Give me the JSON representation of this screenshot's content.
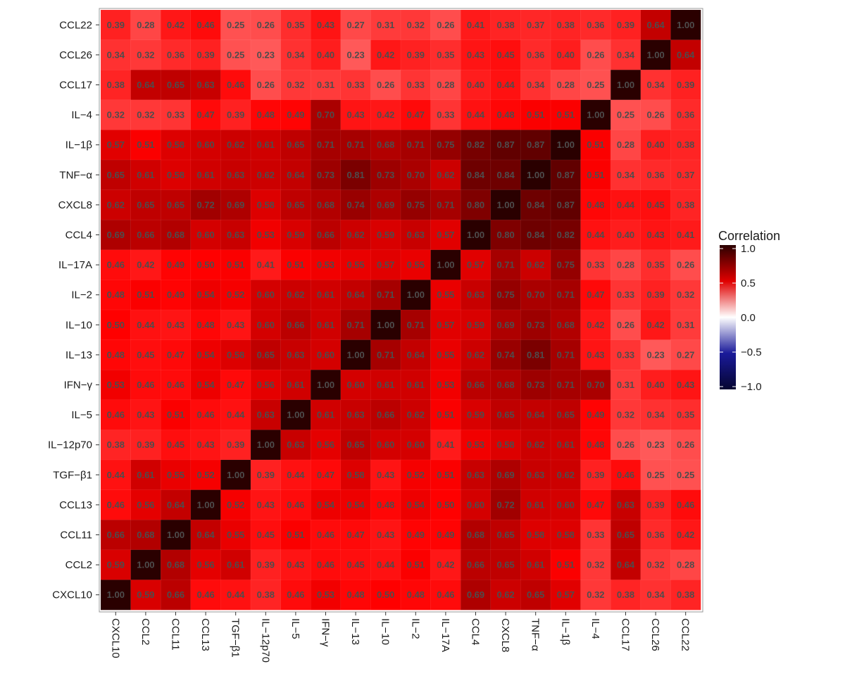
{
  "chart_data": {
    "type": "heatmap",
    "title": "",
    "xlabel": "",
    "ylabel": "",
    "x_categories": [
      "CXCL10",
      "CCL2",
      "CCL11",
      "CCL13",
      "TGF−β1",
      "IL−12p70",
      "IL−5",
      "IFN−γ",
      "IL−13",
      "IL−10",
      "IL−2",
      "IL−17A",
      "CCL4",
      "CXCL8",
      "TNF−α",
      "IL−1β",
      "IL−4",
      "CCL17",
      "CCL26",
      "CCL22"
    ],
    "y_categories": [
      "CCL22",
      "CCL26",
      "CCL17",
      "IL−4",
      "IL−1β",
      "TNF−α",
      "CXCL8",
      "CCL4",
      "IL−17A",
      "IL−2",
      "IL−10",
      "IL−13",
      "IFN−γ",
      "IL−5",
      "IL−12p70",
      "TGF−β1",
      "CCL13",
      "CCL11",
      "CCL2",
      "CXCL10"
    ],
    "values": [
      [
        0.39,
        0.28,
        0.42,
        0.46,
        0.25,
        0.26,
        0.35,
        0.43,
        0.27,
        0.31,
        0.32,
        0.26,
        0.41,
        0.38,
        0.37,
        0.38,
        0.36,
        0.39,
        0.64,
        1.0
      ],
      [
        0.34,
        0.32,
        0.36,
        0.39,
        0.25,
        0.23,
        0.34,
        0.4,
        0.23,
        0.42,
        0.39,
        0.35,
        0.43,
        0.45,
        0.36,
        0.4,
        0.26,
        0.34,
        1.0,
        0.64
      ],
      [
        0.38,
        0.64,
        0.65,
        0.63,
        0.46,
        0.26,
        0.32,
        0.31,
        0.33,
        0.26,
        0.33,
        0.28,
        0.4,
        0.44,
        0.34,
        0.28,
        0.25,
        1.0,
        0.34,
        0.39
      ],
      [
        0.32,
        0.32,
        0.33,
        0.47,
        0.39,
        0.48,
        0.49,
        0.7,
        0.43,
        0.42,
        0.47,
        0.33,
        0.44,
        0.48,
        0.51,
        0.51,
        1.0,
        0.25,
        0.26,
        0.36
      ],
      [
        0.57,
        0.51,
        0.58,
        0.6,
        0.62,
        0.61,
        0.65,
        0.71,
        0.71,
        0.68,
        0.71,
        0.75,
        0.82,
        0.87,
        0.87,
        1.0,
        0.51,
        0.28,
        0.4,
        0.38
      ],
      [
        0.65,
        0.61,
        0.58,
        0.61,
        0.63,
        0.62,
        0.64,
        0.73,
        0.81,
        0.73,
        0.7,
        0.62,
        0.84,
        0.84,
        1.0,
        0.87,
        0.51,
        0.34,
        0.36,
        0.37
      ],
      [
        0.62,
        0.65,
        0.65,
        0.72,
        0.69,
        0.58,
        0.65,
        0.68,
        0.74,
        0.69,
        0.75,
        0.71,
        0.8,
        1.0,
        0.84,
        0.87,
        0.48,
        0.44,
        0.45,
        0.38
      ],
      [
        0.69,
        0.66,
        0.68,
        0.6,
        0.63,
        0.53,
        0.59,
        0.66,
        0.62,
        0.59,
        0.63,
        0.57,
        1.0,
        0.8,
        0.84,
        0.82,
        0.44,
        0.4,
        0.43,
        0.41
      ],
      [
        0.46,
        0.42,
        0.49,
        0.5,
        0.51,
        0.41,
        0.51,
        0.53,
        0.55,
        0.57,
        0.55,
        1.0,
        0.57,
        0.71,
        0.62,
        0.75,
        0.33,
        0.28,
        0.35,
        0.26
      ],
      [
        0.48,
        0.51,
        0.49,
        0.54,
        0.52,
        0.6,
        0.62,
        0.61,
        0.64,
        0.71,
        1.0,
        0.55,
        0.63,
        0.75,
        0.7,
        0.71,
        0.47,
        0.33,
        0.39,
        0.32
      ],
      [
        0.5,
        0.44,
        0.43,
        0.48,
        0.43,
        0.6,
        0.66,
        0.61,
        0.71,
        1.0,
        0.71,
        0.57,
        0.59,
        0.69,
        0.73,
        0.68,
        0.42,
        0.26,
        0.42,
        0.31
      ],
      [
        0.48,
        0.45,
        0.47,
        0.54,
        0.58,
        0.65,
        0.63,
        0.6,
        1.0,
        0.71,
        0.64,
        0.55,
        0.62,
        0.74,
        0.81,
        0.71,
        0.43,
        0.33,
        0.23,
        0.27
      ],
      [
        0.53,
        0.46,
        0.46,
        0.54,
        0.47,
        0.56,
        0.61,
        1.0,
        0.6,
        0.61,
        0.61,
        0.53,
        0.66,
        0.68,
        0.73,
        0.71,
        0.7,
        0.31,
        0.4,
        0.43
      ],
      [
        0.46,
        0.43,
        0.51,
        0.46,
        0.44,
        0.63,
        1.0,
        0.61,
        0.63,
        0.66,
        0.62,
        0.51,
        0.59,
        0.65,
        0.64,
        0.65,
        0.49,
        0.32,
        0.34,
        0.35
      ],
      [
        0.38,
        0.39,
        0.45,
        0.43,
        0.39,
        1.0,
        0.63,
        0.56,
        0.65,
        0.6,
        0.6,
        0.41,
        0.53,
        0.58,
        0.62,
        0.61,
        0.48,
        0.26,
        0.23,
        0.26
      ],
      [
        0.44,
        0.61,
        0.55,
        0.52,
        1.0,
        0.39,
        0.44,
        0.47,
        0.58,
        0.43,
        0.52,
        0.51,
        0.63,
        0.69,
        0.63,
        0.62,
        0.39,
        0.46,
        0.25,
        0.25
      ],
      [
        0.46,
        0.56,
        0.64,
        1.0,
        0.52,
        0.43,
        0.46,
        0.54,
        0.54,
        0.48,
        0.54,
        0.5,
        0.6,
        0.72,
        0.61,
        0.6,
        0.47,
        0.63,
        0.39,
        0.46
      ],
      [
        0.66,
        0.68,
        1.0,
        0.64,
        0.55,
        0.45,
        0.51,
        0.46,
        0.47,
        0.43,
        0.49,
        0.49,
        0.68,
        0.65,
        0.58,
        0.58,
        0.33,
        0.65,
        0.36,
        0.42
      ],
      [
        0.59,
        1.0,
        0.68,
        0.56,
        0.61,
        0.39,
        0.43,
        0.46,
        0.45,
        0.44,
        0.51,
        0.42,
        0.66,
        0.65,
        0.61,
        0.51,
        0.32,
        0.64,
        0.32,
        0.28
      ],
      [
        1.0,
        0.59,
        0.66,
        0.46,
        0.44,
        0.38,
        0.46,
        0.53,
        0.48,
        0.5,
        0.48,
        0.46,
        0.69,
        0.62,
        0.65,
        0.57,
        0.32,
        0.38,
        0.34,
        0.38
      ]
    ],
    "value_range": [
      -1,
      1
    ],
    "legend": {
      "title": "Correlation",
      "position": "right",
      "ticks": [
        1.0,
        0.5,
        0.0,
        -0.5,
        -1.0
      ],
      "tick_labels": [
        "1.0",
        "0.5",
        "0.0",
        "−0.5",
        "−1.0"
      ]
    },
    "colors": {
      "low": "#050530",
      "mid_low": "#1a1a9a",
      "mid": "#ffffff",
      "mid_high": "#ff0000",
      "high": "#2a0000"
    },
    "grid": false
  }
}
